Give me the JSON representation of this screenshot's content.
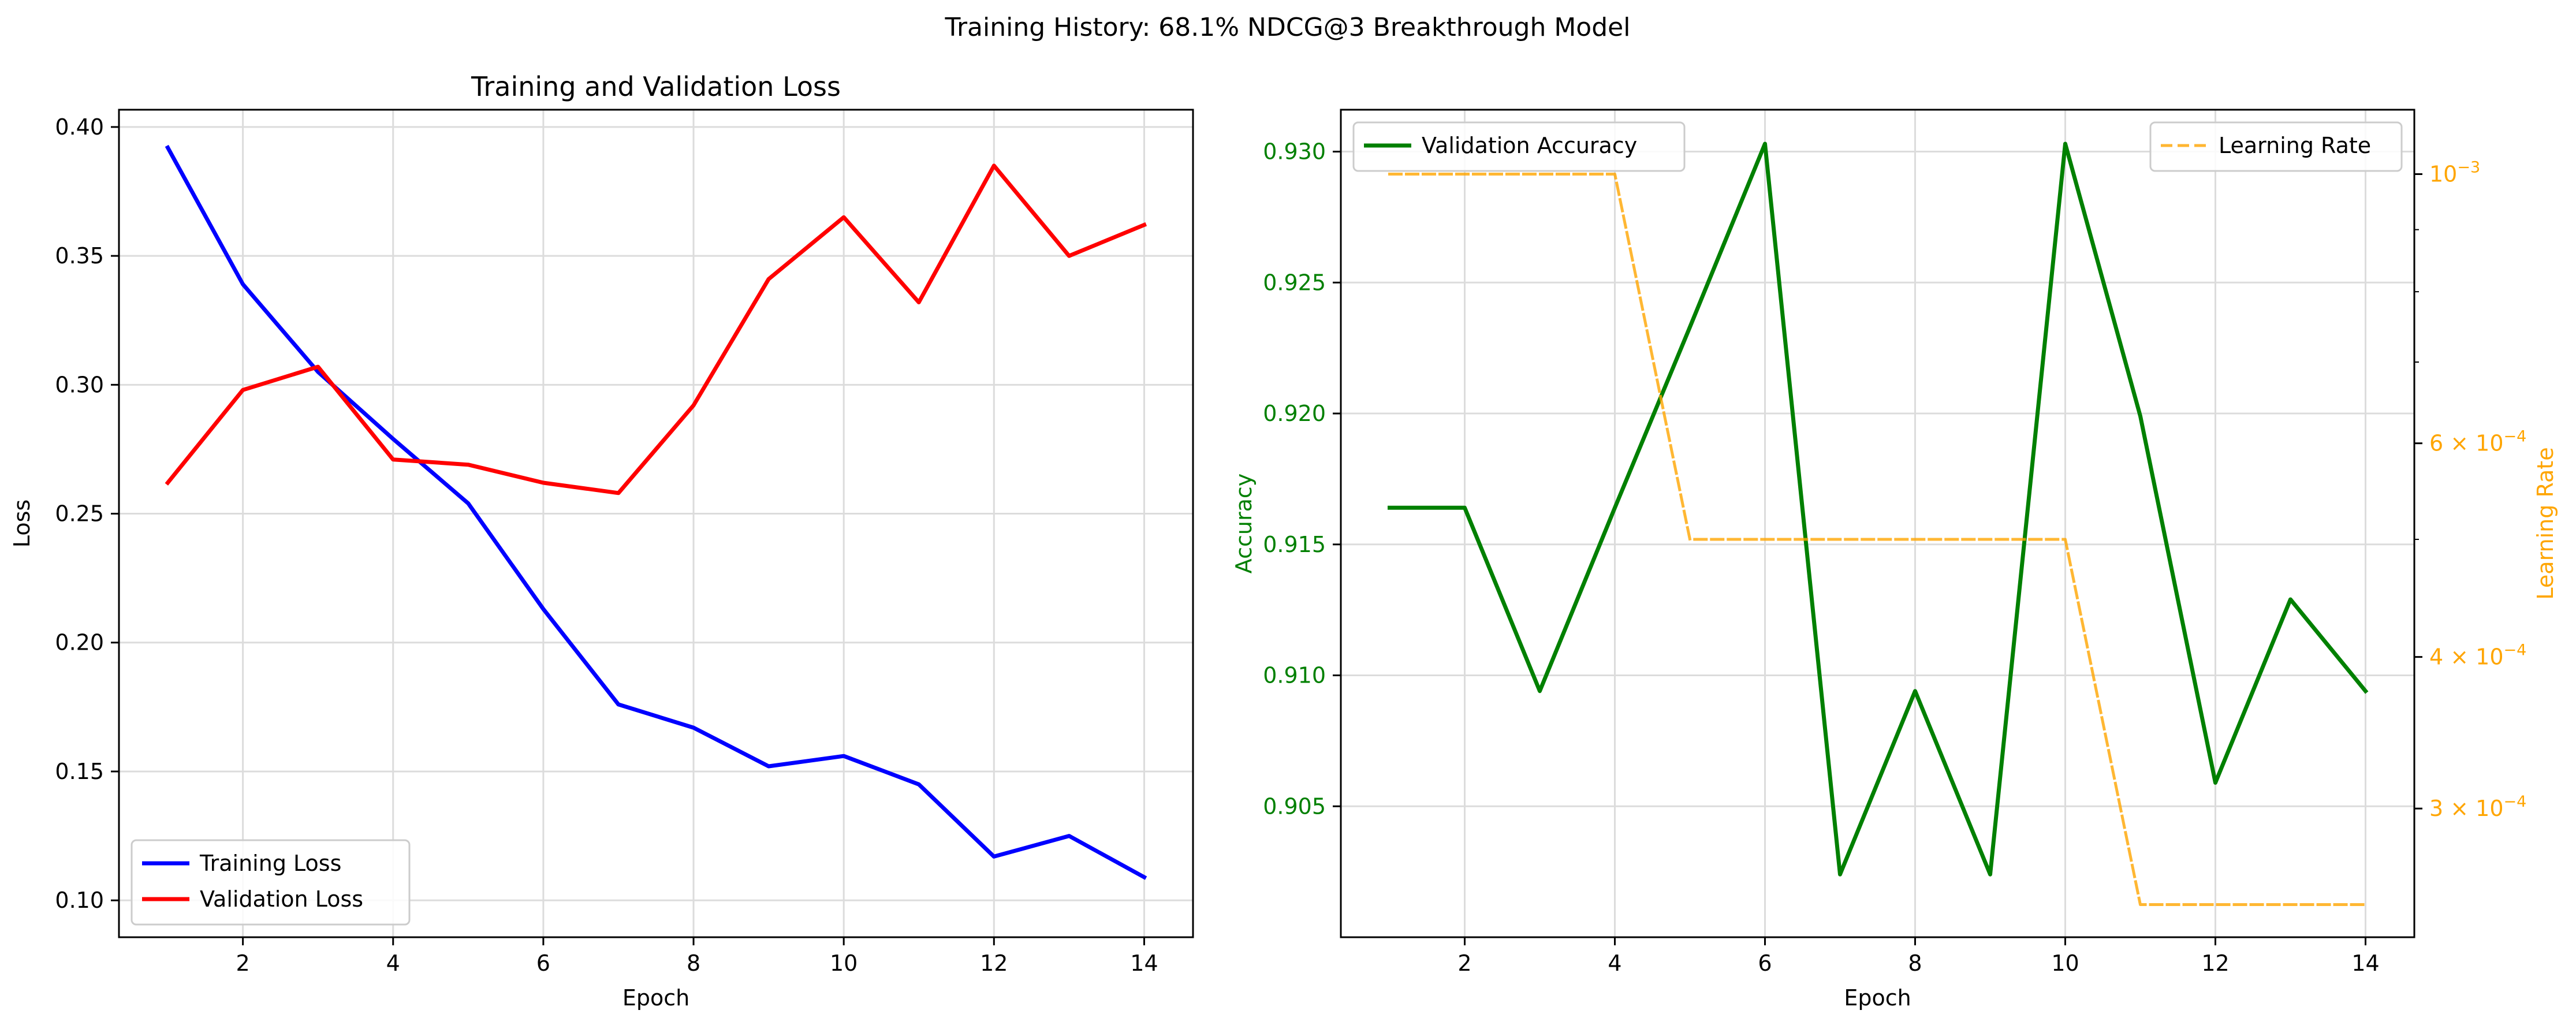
{
  "figure": {
    "suptitle": "Training History: 68.1% NDCG@3 Breakthrough Model"
  },
  "chart_data": [
    {
      "type": "line",
      "title": "Training and Validation Loss",
      "xlabel": "Epoch",
      "ylabel": "Loss",
      "xlim": [
        0.35,
        14.65
      ],
      "ylim": [
        0.0857,
        0.4067
      ],
      "xticks": [
        2,
        4,
        6,
        8,
        10,
        12,
        14
      ],
      "yticks": [
        0.1,
        0.15,
        0.2,
        0.25,
        0.3,
        0.35,
        0.4
      ],
      "ytick_labels": [
        "0.10",
        "0.15",
        "0.20",
        "0.25",
        "0.30",
        "0.35",
        "0.40"
      ],
      "grid": true,
      "legend_position": "lower-left",
      "x": [
        1,
        2,
        3,
        4,
        5,
        6,
        7,
        8,
        9,
        10,
        11,
        12,
        13,
        14
      ],
      "series": [
        {
          "name": "Training Loss",
          "color": "#0000ff",
          "style": "solid",
          "values": [
            0.392,
            0.339,
            0.305,
            0.279,
            0.254,
            0.213,
            0.176,
            0.167,
            0.152,
            0.156,
            0.145,
            0.117,
            0.125,
            0.109
          ]
        },
        {
          "name": "Validation Loss",
          "color": "#ff0000",
          "style": "solid",
          "values": [
            0.262,
            0.298,
            0.307,
            0.271,
            0.269,
            0.262,
            0.258,
            0.292,
            0.341,
            0.365,
            0.332,
            0.385,
            0.35,
            0.362
          ]
        }
      ]
    },
    {
      "type": "line",
      "title": "",
      "xlabel": "Epoch",
      "ylabel": "Accuracy",
      "ylabel_color": "#008000",
      "y2label": "Learning Rate",
      "y2label_color": "#ffa500",
      "y2_scale": "log",
      "xlim": [
        0.35,
        14.65
      ],
      "ylim": [
        0.9,
        0.9316
      ],
      "y2lim": [
        0.000235,
        0.00113
      ],
      "xticks": [
        2,
        4,
        6,
        8,
        10,
        12,
        14
      ],
      "yticks": [
        0.905,
        0.91,
        0.915,
        0.92,
        0.925,
        0.93
      ],
      "ytick_labels": [
        "0.905",
        "0.910",
        "0.915",
        "0.920",
        "0.925",
        "0.930"
      ],
      "y2ticks": [
        0.001,
        0.0006,
        0.0004,
        0.0003
      ],
      "y2tick_labels": [
        {
          "mant": "",
          "exp": "−3"
        },
        {
          "mant": "6 × ",
          "exp": "−4"
        },
        {
          "mant": "4 × ",
          "exp": "−4"
        },
        {
          "mant": "3 × ",
          "exp": "−4"
        }
      ],
      "y2minor_ticks": [
        0.0009,
        0.0008,
        0.0007,
        0.0005
      ],
      "grid": true,
      "legend_position": "top-left",
      "legend2_position": "top-right",
      "x": [
        1,
        2,
        3,
        4,
        5,
        6,
        7,
        8,
        9,
        10,
        11,
        12,
        13,
        14
      ],
      "series": [
        {
          "name": "Validation Accuracy",
          "color": "#008000",
          "style": "solid",
          "axis": "left",
          "values": [
            0.9164,
            0.9164,
            0.9094,
            0.9164,
            0.9233,
            0.9303,
            0.9024,
            0.9094,
            0.9024,
            0.9303,
            0.9199,
            0.9059,
            0.9129,
            0.9094
          ]
        },
        {
          "name": "Learning Rate",
          "color": "#ffa500",
          "style": "dashed",
          "axis": "right",
          "values": [
            0.001,
            0.001,
            0.001,
            0.001,
            0.0005,
            0.0005,
            0.0005,
            0.0005,
            0.0005,
            0.0005,
            0.00025,
            0.00025,
            0.00025,
            0.00025
          ]
        }
      ]
    }
  ]
}
